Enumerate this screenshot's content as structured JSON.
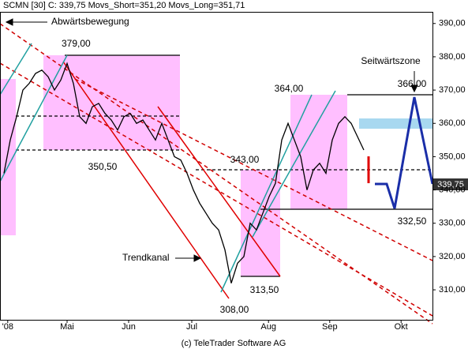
{
  "chart_data": {
    "type": "line",
    "title": "SCMN [30] C: 339,75 Movs_Short=351,20 Movs_Long=351,71",
    "footer": "(c) TeleTrader Software AG",
    "last_price_label": "339,75",
    "x": [
      0,
      1,
      2,
      3,
      4,
      5,
      6,
      7,
      8,
      9,
      10,
      11,
      12,
      13,
      14,
      15,
      16,
      17,
      18,
      19,
      20,
      21,
      22,
      23,
      24,
      25,
      26,
      27,
      28,
      29,
      30,
      31,
      32,
      33,
      34,
      35,
      36,
      37,
      38,
      39,
      40,
      41,
      42,
      43,
      44,
      45,
      46,
      47,
      48,
      49,
      50,
      51,
      52,
      53,
      54,
      55,
      56,
      57
    ],
    "series": [
      {
        "name": "SCMN",
        "color": "#000000",
        "values": [
          345,
          355,
          362,
          370,
          372,
          375,
          376,
          374,
          370,
          373,
          378,
          372,
          362,
          360,
          365,
          366,
          363,
          361,
          358,
          362,
          363,
          360,
          361,
          358,
          355,
          360,
          355,
          350,
          349,
          345,
          340,
          336,
          333,
          330,
          328,
          322,
          312,
          318,
          320,
          330,
          328,
          333,
          338,
          342,
          355,
          360,
          355,
          350,
          340,
          346,
          348,
          345,
          355,
          360,
          362,
          360,
          356,
          352
        ]
      }
    ],
    "xlim": [
      -0.625,
      67.875
    ],
    "ylim": [
      301,
      393.5
    ],
    "yticks": [
      {
        "value": 310,
        "label": "310,00"
      },
      {
        "value": 320,
        "label": "320,00"
      },
      {
        "value": 330,
        "label": "330,00"
      },
      {
        "value": 340,
        "label": "340,00"
      },
      {
        "value": 350,
        "label": "350,00"
      },
      {
        "value": 360,
        "label": "360,00"
      },
      {
        "value": 370,
        "label": "370,00"
      },
      {
        "value": 380,
        "label": "380,00"
      },
      {
        "value": 390,
        "label": "390,00"
      }
    ],
    "xticks": [
      {
        "value": 0.6,
        "label": "'08"
      },
      {
        "value": 10,
        "label": "Mai"
      },
      {
        "value": 19.75,
        "label": "Jun"
      },
      {
        "value": 29.75,
        "label": "Jul"
      },
      {
        "value": 41.9,
        "label": "Aug"
      },
      {
        "value": 51.6,
        "label": "Sep"
      },
      {
        "value": 62.9,
        "label": "Okt"
      }
    ],
    "annotations": [
      "Abwärtsbewegung",
      "379,00",
      "350,50",
      "343,00",
      "364,00",
      "Seitwärtszone",
      "366,00",
      "332,50",
      "313,50",
      "308,00",
      "Trendkanal"
    ]
  }
}
